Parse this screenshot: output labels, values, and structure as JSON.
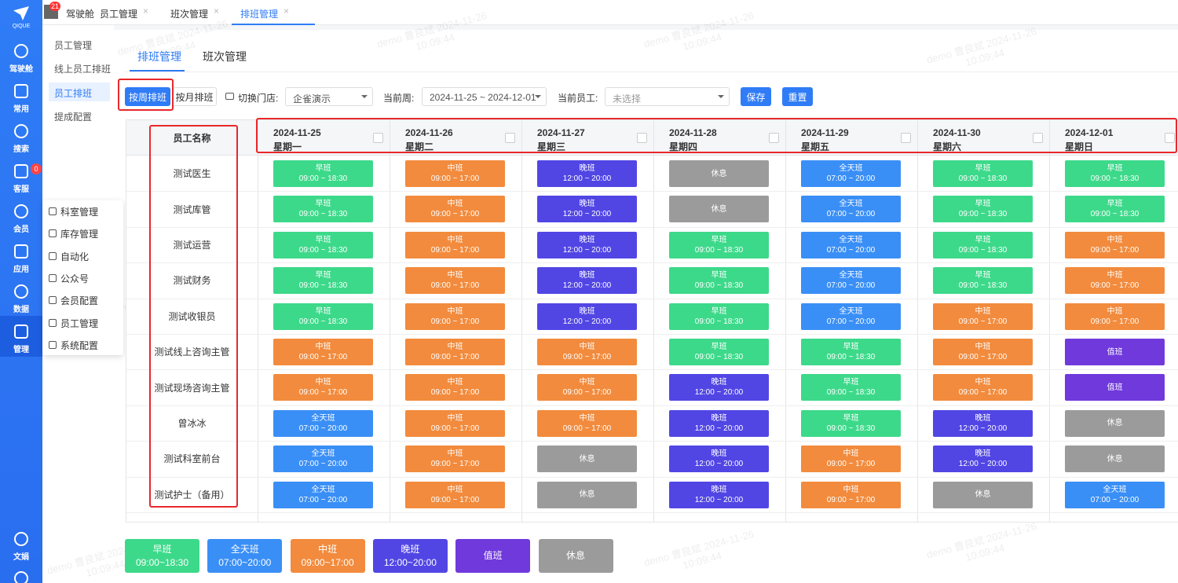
{
  "sidebar": {
    "logo": "QIQUE",
    "items": [
      "驾驶舱",
      "常用",
      "搜索",
      "客服",
      "会员",
      "应用",
      "数据",
      "管理",
      "文娟"
    ],
    "badge": "0"
  },
  "top_tabs": {
    "badge": "21",
    "tabs": [
      "驾驶舱",
      "员工管理",
      "班次管理",
      "排班管理"
    ]
  },
  "submenu": [
    "员工管理",
    "线上员工排班",
    "员工排班",
    "提成配置"
  ],
  "popup_menu": [
    "科室管理",
    "库存管理",
    "自动化",
    "公众号",
    "会员配置",
    "员工管理",
    "系统配置"
  ],
  "content_tabs": [
    "排班管理",
    "班次管理"
  ],
  "toolbar": {
    "week_button": "按周排班",
    "month_button": "按月排班",
    "store_label": "切换门店:",
    "store_value": "企雀演示",
    "week_label": "当前周:",
    "week_value": "2024-11-25 ~ 2024-12-01",
    "staff_label": "当前员工:",
    "staff_placeholder": "未选择",
    "save": "保存",
    "reset": "重置"
  },
  "table": {
    "name_header": "员工名称",
    "columns": [
      {
        "date": "2024-11-25",
        "weekday": "星期一"
      },
      {
        "date": "2024-11-26",
        "weekday": "星期二"
      },
      {
        "date": "2024-11-27",
        "weekday": "星期三"
      },
      {
        "date": "2024-11-28",
        "weekday": "星期四"
      },
      {
        "date": "2024-11-29",
        "weekday": "星期五"
      },
      {
        "date": "2024-11-30",
        "weekday": "星期六"
      },
      {
        "date": "2024-12-01",
        "weekday": "星期日"
      }
    ],
    "rows": [
      {
        "name": "测试医生",
        "cells": [
          {
            "label": "早班",
            "time": "09:00 ~ 18:30"
          },
          {
            "label": "中班",
            "time": "09:00 ~ 17:00"
          },
          {
            "label": "晚班",
            "time": "12:00 ~ 20:00"
          },
          {
            "label": "休息"
          },
          {
            "label": "全天班",
            "time": "07:00 ~ 20:00"
          },
          {
            "label": "早班",
            "time": "09:00 ~ 18:30"
          },
          {
            "label": "早班",
            "time": "09:00 ~ 18:30"
          }
        ]
      },
      {
        "name": "测试库管",
        "cells": [
          {
            "label": "早班",
            "time": "09:00 ~ 18:30"
          },
          {
            "label": "中班",
            "time": "09:00 ~ 17:00"
          },
          {
            "label": "晚班",
            "time": "12:00 ~ 20:00"
          },
          {
            "label": "休息"
          },
          {
            "label": "全天班",
            "time": "07:00 ~ 20:00"
          },
          {
            "label": "早班",
            "time": "09:00 ~ 18:30"
          },
          {
            "label": "早班",
            "time": "09:00 ~ 18:30"
          }
        ]
      },
      {
        "name": "测试运营",
        "cells": [
          {
            "label": "早班",
            "time": "09:00 ~ 18:30"
          },
          {
            "label": "中班",
            "time": "09:00 ~ 17:00"
          },
          {
            "label": "晚班",
            "time": "12:00 ~ 20:00"
          },
          {
            "label": "早班",
            "time": "09:00 ~ 18:30"
          },
          {
            "label": "全天班",
            "time": "07:00 ~ 20:00"
          },
          {
            "label": "早班",
            "time": "09:00 ~ 18:30"
          },
          {
            "label": "中班",
            "time": "09:00 ~ 17:00"
          }
        ]
      },
      {
        "name": "测试财务",
        "cells": [
          {
            "label": "早班",
            "time": "09:00 ~ 18:30"
          },
          {
            "label": "中班",
            "time": "09:00 ~ 17:00"
          },
          {
            "label": "晚班",
            "time": "12:00 ~ 20:00"
          },
          {
            "label": "早班",
            "time": "09:00 ~ 18:30"
          },
          {
            "label": "全天班",
            "time": "07:00 ~ 20:00"
          },
          {
            "label": "早班",
            "time": "09:00 ~ 18:30"
          },
          {
            "label": "中班",
            "time": "09:00 ~ 17:00"
          }
        ]
      },
      {
        "name": "测试收银员",
        "cells": [
          {
            "label": "早班",
            "time": "09:00 ~ 18:30"
          },
          {
            "label": "中班",
            "time": "09:00 ~ 17:00"
          },
          {
            "label": "晚班",
            "time": "12:00 ~ 20:00"
          },
          {
            "label": "早班",
            "time": "09:00 ~ 18:30"
          },
          {
            "label": "全天班",
            "time": "07:00 ~ 20:00"
          },
          {
            "label": "中班",
            "time": "09:00 ~ 17:00"
          },
          {
            "label": "中班",
            "time": "09:00 ~ 17:00"
          }
        ]
      },
      {
        "name": "测试线上咨询主管",
        "cells": [
          {
            "label": "中班",
            "time": "09:00 ~ 17:00"
          },
          {
            "label": "中班",
            "time": "09:00 ~ 17:00"
          },
          {
            "label": "中班",
            "time": "09:00 ~ 17:00"
          },
          {
            "label": "早班",
            "time": "09:00 ~ 18:30"
          },
          {
            "label": "早班",
            "time": "09:00 ~ 18:30"
          },
          {
            "label": "中班",
            "time": "09:00 ~ 17:00"
          },
          {
            "label": "值班"
          }
        ]
      },
      {
        "name": "测试现场咨询主管",
        "cells": [
          {
            "label": "中班",
            "time": "09:00 ~ 17:00"
          },
          {
            "label": "中班",
            "time": "09:00 ~ 17:00"
          },
          {
            "label": "中班",
            "time": "09:00 ~ 17:00"
          },
          {
            "label": "晚班",
            "time": "12:00 ~ 20:00"
          },
          {
            "label": "早班",
            "time": "09:00 ~ 18:30"
          },
          {
            "label": "中班",
            "time": "09:00 ~ 17:00"
          },
          {
            "label": "值班"
          }
        ]
      },
      {
        "name": "曾冰冰",
        "cells": [
          {
            "label": "全天班",
            "time": "07:00 ~ 20:00"
          },
          {
            "label": "中班",
            "time": "09:00 ~ 17:00"
          },
          {
            "label": "中班",
            "time": "09:00 ~ 17:00"
          },
          {
            "label": "晚班",
            "time": "12:00 ~ 20:00"
          },
          {
            "label": "早班",
            "time": "09:00 ~ 18:30"
          },
          {
            "label": "晚班",
            "time": "12:00 ~ 20:00"
          },
          {
            "label": "休息"
          }
        ]
      },
      {
        "name": "测试科室前台",
        "cells": [
          {
            "label": "全天班",
            "time": "07:00 ~ 20:00"
          },
          {
            "label": "中班",
            "time": "09:00 ~ 17:00"
          },
          {
            "label": "休息"
          },
          {
            "label": "晚班",
            "time": "12:00 ~ 20:00"
          },
          {
            "label": "中班",
            "time": "09:00 ~ 17:00"
          },
          {
            "label": "晚班",
            "time": "12:00 ~ 20:00"
          },
          {
            "label": "休息"
          }
        ]
      },
      {
        "name": "测试护士（备用）",
        "cells": [
          {
            "label": "全天班",
            "time": "07:00 ~ 20:00"
          },
          {
            "label": "中班",
            "time": "09:00 ~ 17:00"
          },
          {
            "label": "休息"
          },
          {
            "label": "晚班",
            "time": "12:00 ~ 20:00"
          },
          {
            "label": "中班",
            "time": "09:00 ~ 17:00"
          },
          {
            "label": "休息"
          },
          {
            "label": "全天班",
            "time": "07:00 ~ 20:00"
          }
        ]
      }
    ]
  },
  "legend": [
    {
      "name": "早班",
      "time": "09:00~18:30",
      "color": "#3dd98a"
    },
    {
      "name": "全天班",
      "time": "07:00~20:00",
      "color": "#3a8ff6"
    },
    {
      "name": "中班",
      "time": "09:00~17:00",
      "color": "#f28b3d"
    },
    {
      "name": "晚班",
      "time": "12:00~20:00",
      "color": "#5146e4"
    },
    {
      "name": "值班",
      "color": "#7039dc"
    },
    {
      "name": "休息",
      "color": "#9b9b9b"
    }
  ],
  "watermark": {
    "line1": "demo 曹良斌 2024-11-26",
    "line2": "10:09:44"
  }
}
